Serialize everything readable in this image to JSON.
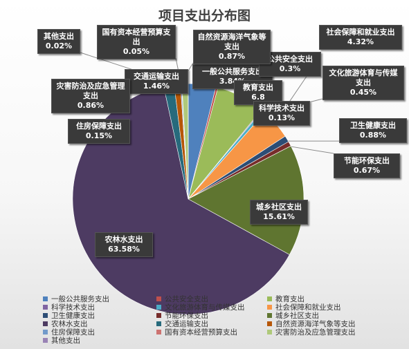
{
  "chart_data": {
    "type": "pie",
    "title": "项目支出分布图",
    "slices": [
      {
        "label": "一般公共服务支出",
        "value": 3.84,
        "display": "3.84%",
        "color": "#4f81bd"
      },
      {
        "label": "公共安全支出",
        "value": 0.3,
        "display": "0.3%",
        "color": "#c0504d"
      },
      {
        "label": "教育支出",
        "value": 6.8,
        "display": "6.8",
        "color": "#9bbb59"
      },
      {
        "label": "科学技术支出",
        "value": 0.13,
        "display": "0.13%",
        "color": "#8064a2"
      },
      {
        "label": "文化旅游体育与传媒支出",
        "value": 0.45,
        "display": "0.45%",
        "color": "#4bacc6"
      },
      {
        "label": "社会保障和就业支出",
        "value": 4.32,
        "display": "4.32%",
        "color": "#f79646"
      },
      {
        "label": "卫生健康支出",
        "value": 0.88,
        "display": "0.88%",
        "color": "#2c4d75"
      },
      {
        "label": "节能环保支出",
        "value": 0.67,
        "display": "0.67%",
        "color": "#772c2a"
      },
      {
        "label": "城乡社区支出",
        "value": 15.61,
        "display": "15.61%",
        "color": "#5f7530"
      },
      {
        "label": "农林水支出",
        "value": 63.58,
        "display": "63.58%",
        "color": "#4d3b62"
      },
      {
        "label": "交通运输支出",
        "value": 1.46,
        "display": "1.46%",
        "color": "#276a7c"
      },
      {
        "label": "自然资源海洋气象等支出",
        "value": 0.87,
        "display": "0.87%",
        "color": "#b65708"
      },
      {
        "label": "住房保障支出",
        "value": 0.15,
        "display": "0.15%",
        "color": "#729aca"
      },
      {
        "label": "国有资本经营预算支出",
        "value": 0.05,
        "display": "0.05%",
        "color": "#cd7371"
      },
      {
        "label": "灾害防治及应急管理支出",
        "value": 0.86,
        "display": "0.86%",
        "color": "#afc97a"
      },
      {
        "label": "其他支出",
        "value": 0.02,
        "display": "0.02%",
        "color": "#9983b5"
      }
    ],
    "legend_placement": "bottom",
    "legend_entries": [
      "一般公共服务支出",
      "公共安全支出",
      "教育支出",
      "科学技术支出",
      "文化旅游体育与传媒支出",
      "社会保障和就业支出",
      "卫生健康支出",
      "节能环保支出",
      "城乡社区支出",
      "农林水支出",
      "交通运输支出",
      "自然资源海洋气象等支出",
      "住房保障支出",
      "国有资本经营预算支出",
      "灾害防治及应急管理支出",
      "其他支出"
    ]
  }
}
